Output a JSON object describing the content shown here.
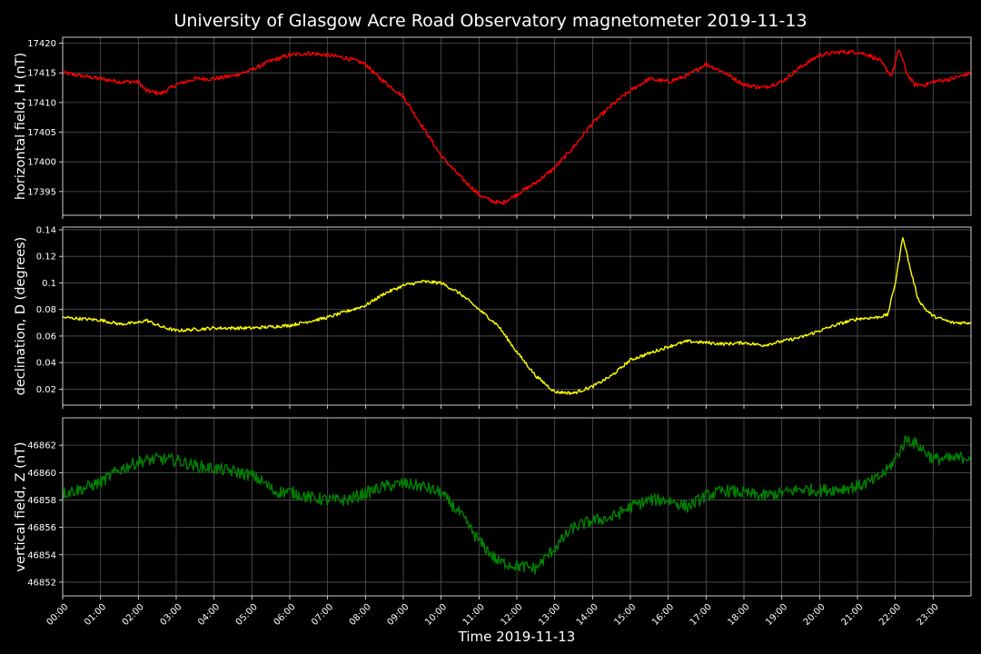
{
  "chart_data": {
    "type": "line",
    "title": "University of Glasgow Acre Road Observatory magnetometer 2019-11-13",
    "xlabel": "Time 2019-11-13",
    "x_ticks": [
      "00:00",
      "01:00",
      "02:00",
      "03:00",
      "04:00",
      "05:00",
      "06:00",
      "07:00",
      "08:00",
      "09:00",
      "10:00",
      "11:00",
      "12:00",
      "13:00",
      "14:00",
      "15:00",
      "16:00",
      "17:00",
      "18:00",
      "19:00",
      "20:00",
      "21:00",
      "22:00",
      "23:00"
    ],
    "x_range_hours": [
      0,
      24
    ],
    "grid": true,
    "background": "#000000",
    "panels": [
      {
        "ylabel": "horizontal field, H (nT)",
        "color": "#ff0000",
        "ylim": [
          17391,
          17421
        ],
        "yticks": [
          17395,
          17400,
          17405,
          17410,
          17415,
          17420
        ],
        "noise": 0.35,
        "x": [
          0,
          0.5,
          1,
          1.5,
          2,
          2.2,
          2.6,
          3,
          3.5,
          4,
          4.5,
          5,
          5.5,
          6,
          6.5,
          7,
          7.5,
          8,
          8.3,
          8.6,
          9,
          9.3,
          9.6,
          10,
          10.5,
          11,
          11.3,
          11.6,
          12,
          12.5,
          13,
          13.5,
          14,
          14.5,
          15,
          15.5,
          16,
          16.5,
          17,
          17.5,
          18,
          18.5,
          19,
          19.5,
          20,
          20.5,
          21,
          21.3,
          21.6,
          21.9,
          22.1,
          22.3,
          22.5,
          22.8,
          23,
          23.5,
          24
        ],
        "y": [
          17415,
          17414.5,
          17414,
          17413.5,
          17413.5,
          17412,
          17411.5,
          17413,
          17414,
          17414,
          17414.5,
          17415.5,
          17417,
          17418,
          17418.3,
          17418,
          17417.5,
          17416.5,
          17414.5,
          17413,
          17411,
          17408,
          17405,
          17401,
          17397.5,
          17394.5,
          17393.5,
          17393,
          17394.5,
          17396.5,
          17399,
          17402.5,
          17406.5,
          17409.5,
          17412,
          17414,
          17413.5,
          17414.5,
          17416.5,
          17415,
          17413,
          17412.5,
          17413.5,
          17416,
          17418,
          17418.5,
          17418.5,
          17418,
          17417,
          17414.5,
          17419,
          17415,
          17413,
          17413,
          17413.5,
          17414,
          17415
        ]
      },
      {
        "ylabel": "declination, D (degrees)",
        "color": "#ffff00",
        "ylim": [
          0.008,
          0.142
        ],
        "yticks": [
          0.02,
          0.04,
          0.06,
          0.08,
          0.1,
          0.12,
          0.14
        ],
        "noise": 0.0012,
        "x": [
          0,
          1,
          1.5,
          2,
          2.2,
          2.6,
          3,
          4,
          5,
          6,
          7,
          8,
          8.5,
          9,
          9.5,
          10,
          10.5,
          11,
          11.5,
          12,
          12.5,
          13,
          13.5,
          14,
          14.5,
          15,
          15.5,
          16,
          16.5,
          17,
          17.5,
          18,
          18.5,
          19,
          19.5,
          20,
          20.5,
          21,
          21.5,
          21.8,
          22,
          22.2,
          22.4,
          22.6,
          22.8,
          23,
          23.5,
          24
        ],
        "y": [
          0.074,
          0.072,
          0.069,
          0.07,
          0.072,
          0.067,
          0.064,
          0.066,
          0.066,
          0.068,
          0.074,
          0.083,
          0.092,
          0.098,
          0.101,
          0.1,
          0.092,
          0.08,
          0.068,
          0.048,
          0.03,
          0.018,
          0.017,
          0.022,
          0.03,
          0.042,
          0.047,
          0.052,
          0.056,
          0.055,
          0.054,
          0.055,
          0.053,
          0.056,
          0.059,
          0.064,
          0.069,
          0.073,
          0.074,
          0.076,
          0.1,
          0.135,
          0.11,
          0.088,
          0.08,
          0.075,
          0.07,
          0.07
        ]
      },
      {
        "ylabel": "vertical field, Z (nT)",
        "color": "#008000",
        "ylim": [
          46851,
          46864
        ],
        "yticks": [
          46852,
          46854,
          46856,
          46858,
          46860,
          46862
        ],
        "noise": 0.45,
        "x": [
          0,
          0.5,
          1,
          1.5,
          2,
          2.5,
          3,
          3.5,
          4,
          4.5,
          5,
          5.3,
          5.6,
          6,
          6.5,
          7,
          7.5,
          8,
          8.5,
          9,
          9.5,
          10,
          10.5,
          11,
          11.5,
          12,
          12.5,
          13,
          13.5,
          14,
          14.5,
          15,
          15.5,
          16,
          16.5,
          17,
          17.5,
          18,
          18.5,
          19,
          19.5,
          20,
          20.5,
          21,
          21.5,
          21.8,
          22,
          22.3,
          22.6,
          23,
          23.5,
          24
        ],
        "y": [
          46858.5,
          46858.8,
          46859.3,
          46860.2,
          46860.8,
          46861,
          46860.9,
          46860.5,
          46860.3,
          46860.1,
          46859.8,
          46859.3,
          46858.6,
          46858.6,
          46858.2,
          46858,
          46858,
          46858.5,
          46859,
          46859.2,
          46859,
          46858.5,
          46857,
          46855,
          46853.5,
          46853.2,
          46853,
          46854.5,
          46856,
          46856.5,
          46856.7,
          46857.5,
          46858,
          46858,
          46857.5,
          46858.3,
          46858.7,
          46858.5,
          46858.3,
          46858.5,
          46858.8,
          46858.7,
          46858.8,
          46859,
          46859.5,
          46860.2,
          46861,
          46862.5,
          46862,
          46861,
          46861,
          46861.2
        ]
      }
    ]
  }
}
